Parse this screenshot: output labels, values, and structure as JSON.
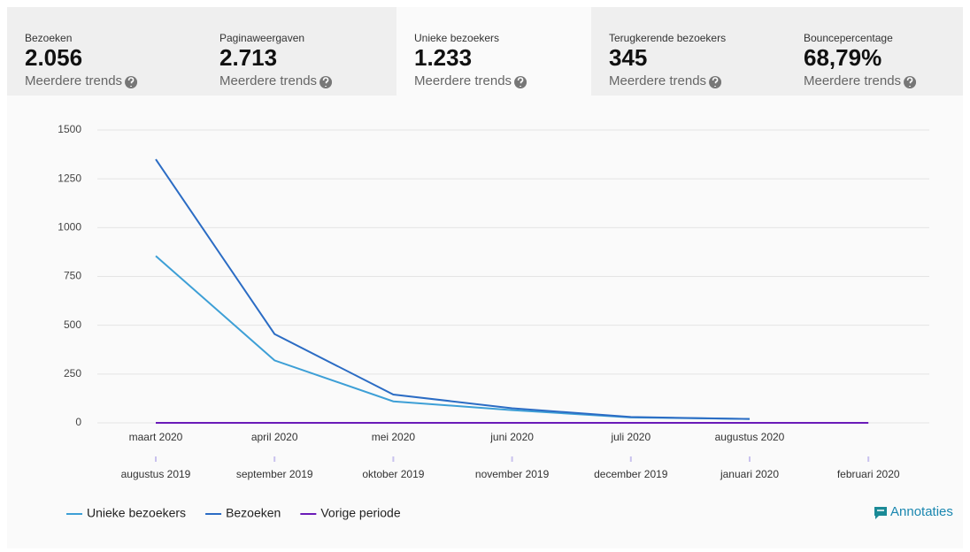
{
  "tabs": [
    {
      "label": "Bezoeken",
      "value": "2.056",
      "link": "Meerdere trends"
    },
    {
      "label": "Paginaweergaven",
      "value": "2.713",
      "link": "Meerdere trends"
    },
    {
      "label": "Unieke bezoekers",
      "value": "1.233",
      "link": "Meerdere trends"
    },
    {
      "label": "Terugkerende bezoekers",
      "value": "345",
      "link": "Meerdere trends"
    },
    {
      "label": "Bouncepercentage",
      "value": "68,79%",
      "link": "Meerdere trends"
    }
  ],
  "selected_tab": 2,
  "annotations_link": "Annotaties",
  "chart_data": {
    "type": "line",
    "categories": [
      "maart 2020",
      "april 2020",
      "mei 2020",
      "juni 2020",
      "juli 2020",
      "augustus 2020",
      null
    ],
    "categories_previous": [
      "augustus 2019",
      "september 2019",
      "oktober 2019",
      "november 2019",
      "december 2019",
      "januari 2020",
      "februari 2020"
    ],
    "series": [
      {
        "name": "Unieke bezoekers",
        "color": "#3d9fd6",
        "values": [
          855,
          320,
          110,
          65,
          28,
          20,
          null
        ]
      },
      {
        "name": "Bezoeken",
        "color": "#2b6cc4",
        "values": [
          1350,
          455,
          145,
          75,
          30,
          20,
          null
        ]
      },
      {
        "name": "Vorige periode",
        "color": "#6a1bb8",
        "values": [
          0,
          0,
          0,
          0,
          0,
          0,
          0
        ]
      }
    ],
    "ylim": [
      0,
      1500
    ],
    "yticks": [
      0,
      250,
      500,
      750,
      1000,
      1250,
      1500
    ],
    "grid": true,
    "legend": "bottom-left"
  }
}
